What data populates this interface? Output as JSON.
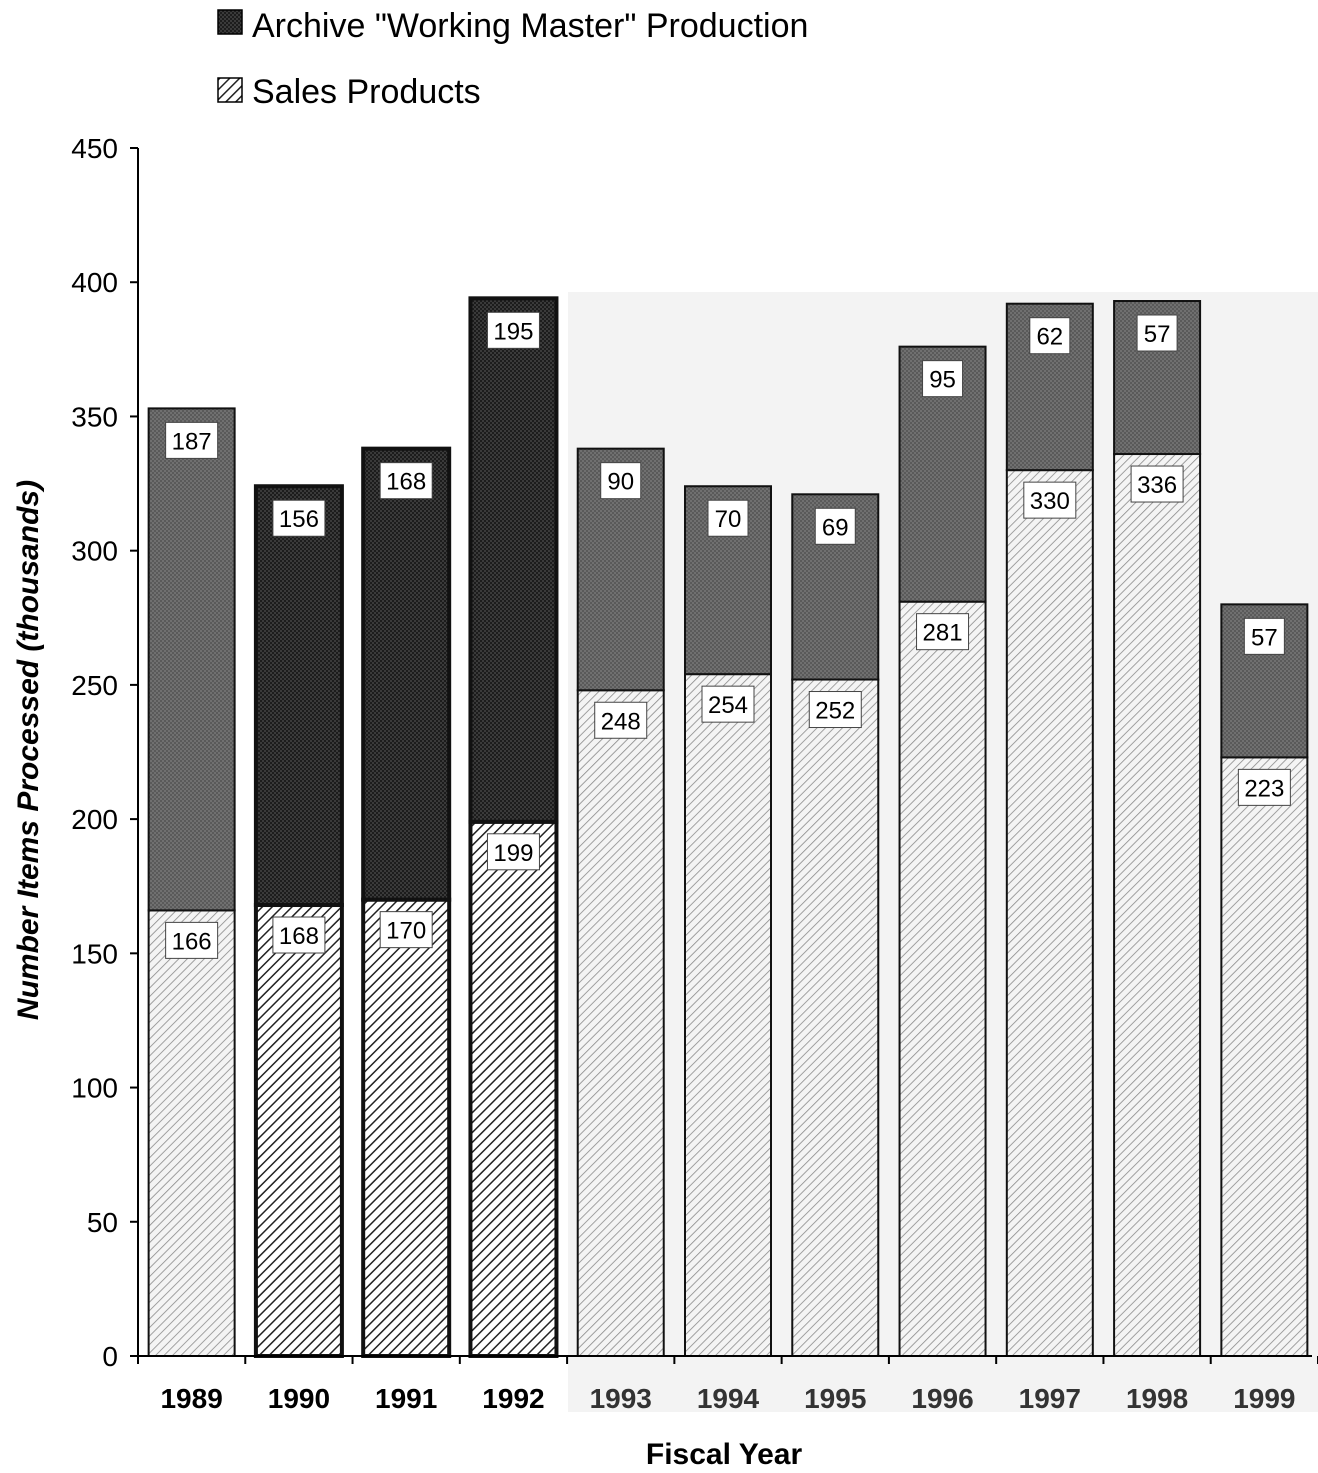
{
  "chart_data": {
    "type": "bar",
    "stacked": true,
    "xlabel": "Fiscal Year",
    "ylabel": "Number Items Processed (thousands)",
    "ylim": [
      0,
      450
    ],
    "yticks": [
      0,
      50,
      100,
      150,
      200,
      250,
      300,
      350,
      400,
      450
    ],
    "grid": false,
    "legend_position": "top-left",
    "categories": [
      "1989",
      "1990",
      "1991",
      "1992",
      "1993",
      "1994",
      "1995",
      "1996",
      "1997",
      "1998",
      "1999"
    ],
    "series": [
      {
        "name": "Sales Products",
        "pattern": "diagonal-hatch",
        "values": [
          166,
          168,
          170,
          199,
          248,
          254,
          252,
          281,
          330,
          336,
          223
        ]
      },
      {
        "name": "Archive \"Working Master\" Production",
        "pattern": "crosshatch-dark",
        "values": [
          187,
          156,
          168,
          195,
          90,
          70,
          69,
          95,
          62,
          57,
          57
        ]
      }
    ],
    "colors": {
      "archive_dark": "#2e2e2e",
      "archive_light": "#6b6b6b",
      "sales_dark": "#222222",
      "sales_light": "#9a9a9a",
      "faded_background": "#f2f2f2"
    }
  }
}
